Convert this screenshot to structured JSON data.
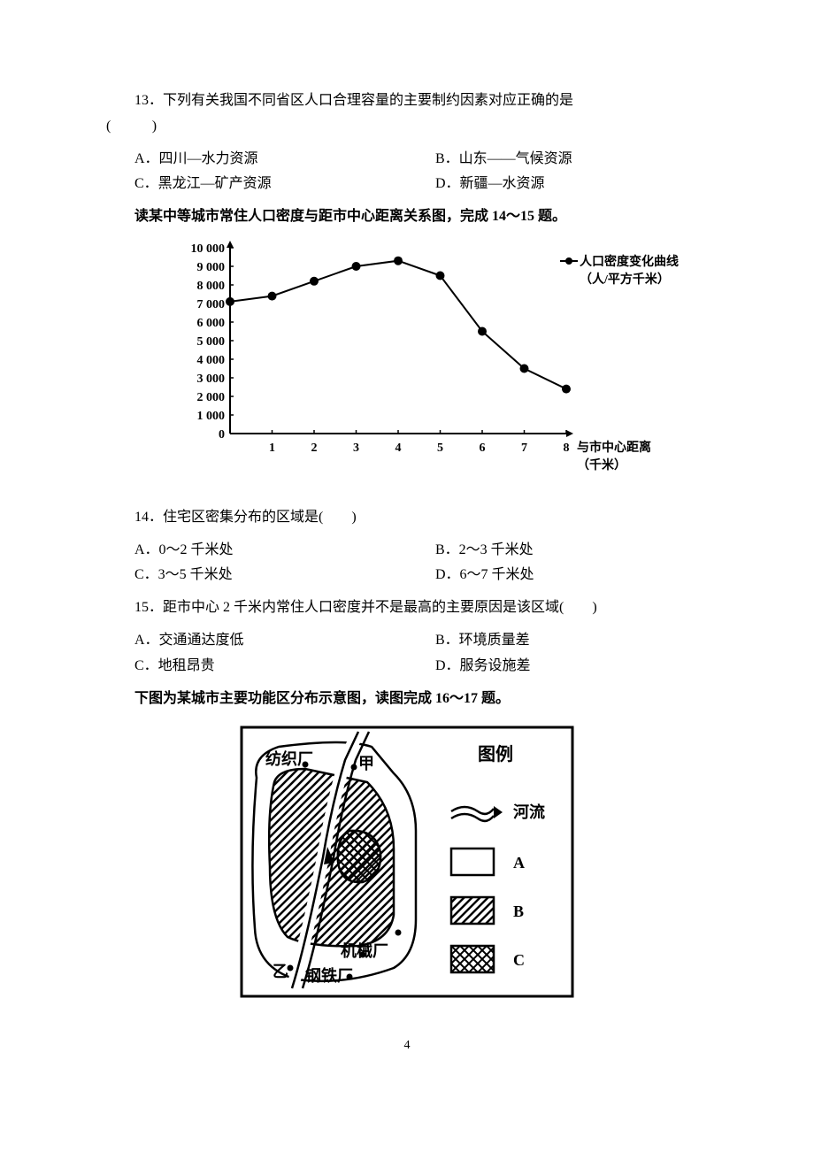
{
  "q13": {
    "text": "13．下列有关我国不同省区人口合理容量的主要制约因素对应正确的是",
    "paren": "(　　)",
    "options": {
      "a": "A．四川—水力资源",
      "b": "B．山东——气候资源",
      "c": "C．黑龙江—矿产资源",
      "d": "D．新疆—水资源"
    }
  },
  "intro1": "读某中等城市常住人口密度与距市中心距离关系图，完成 14～15 题。",
  "chart": {
    "type": "line",
    "legend": "人口密度变化曲线",
    "legend_unit": "（人/平方千米）",
    "xlabel": "与市中心距离",
    "xlabel_unit": "（千米）",
    "ylim": [
      0,
      10000
    ],
    "ytick_step": 1000,
    "yticks": [
      "0",
      "1 000",
      "2 000",
      "3 000",
      "4 000",
      "5 000",
      "6 000",
      "7 000",
      "8 000",
      "9 000",
      "10 000"
    ],
    "xticks": [
      "1",
      "2",
      "3",
      "4",
      "5",
      "6",
      "7",
      "8"
    ],
    "data_x": [
      0,
      1,
      2,
      3,
      4,
      5,
      6,
      7,
      8
    ],
    "data_y": [
      7100,
      7400,
      8200,
      9000,
      9300,
      8500,
      5500,
      3500,
      2400
    ],
    "line_color": "#000000",
    "line_width": 2,
    "marker": "circle",
    "marker_size": 5,
    "background_color": "#ffffff",
    "axis_color": "#000000",
    "font_size": 14
  },
  "q14": {
    "text": "14．住宅区密集分布的区域是(　　)",
    "options": {
      "a": "A．0～2 千米处",
      "b": "B．2～3 千米处",
      "c": "C．3～5 千米处",
      "d": "D．6～7 千米处"
    }
  },
  "q15": {
    "text": "15．距市中心 2 千米内常住人口密度并不是最高的主要原因是该区域(　　)",
    "options": {
      "a": "A．交通通达度低",
      "b": "B．环境质量差",
      "c": "C．地租昂贵",
      "d": "D．服务设施差"
    }
  },
  "intro2": "下图为某城市主要功能区分布示意图，读图完成 16～17 题。",
  "map": {
    "type": "diagram",
    "border_color": "#000000",
    "border_width": 3,
    "background_color": "#ffffff",
    "labels": {
      "textile": "纺织厂",
      "jia": "甲",
      "yi": "乙",
      "machinery": "机械厂",
      "steel": "钢铁厂",
      "legend_title": "图例",
      "river": "河流",
      "a": "A",
      "b": "B",
      "c": "C"
    },
    "font_size": 18,
    "font_weight": "bold"
  },
  "page_number": "4"
}
